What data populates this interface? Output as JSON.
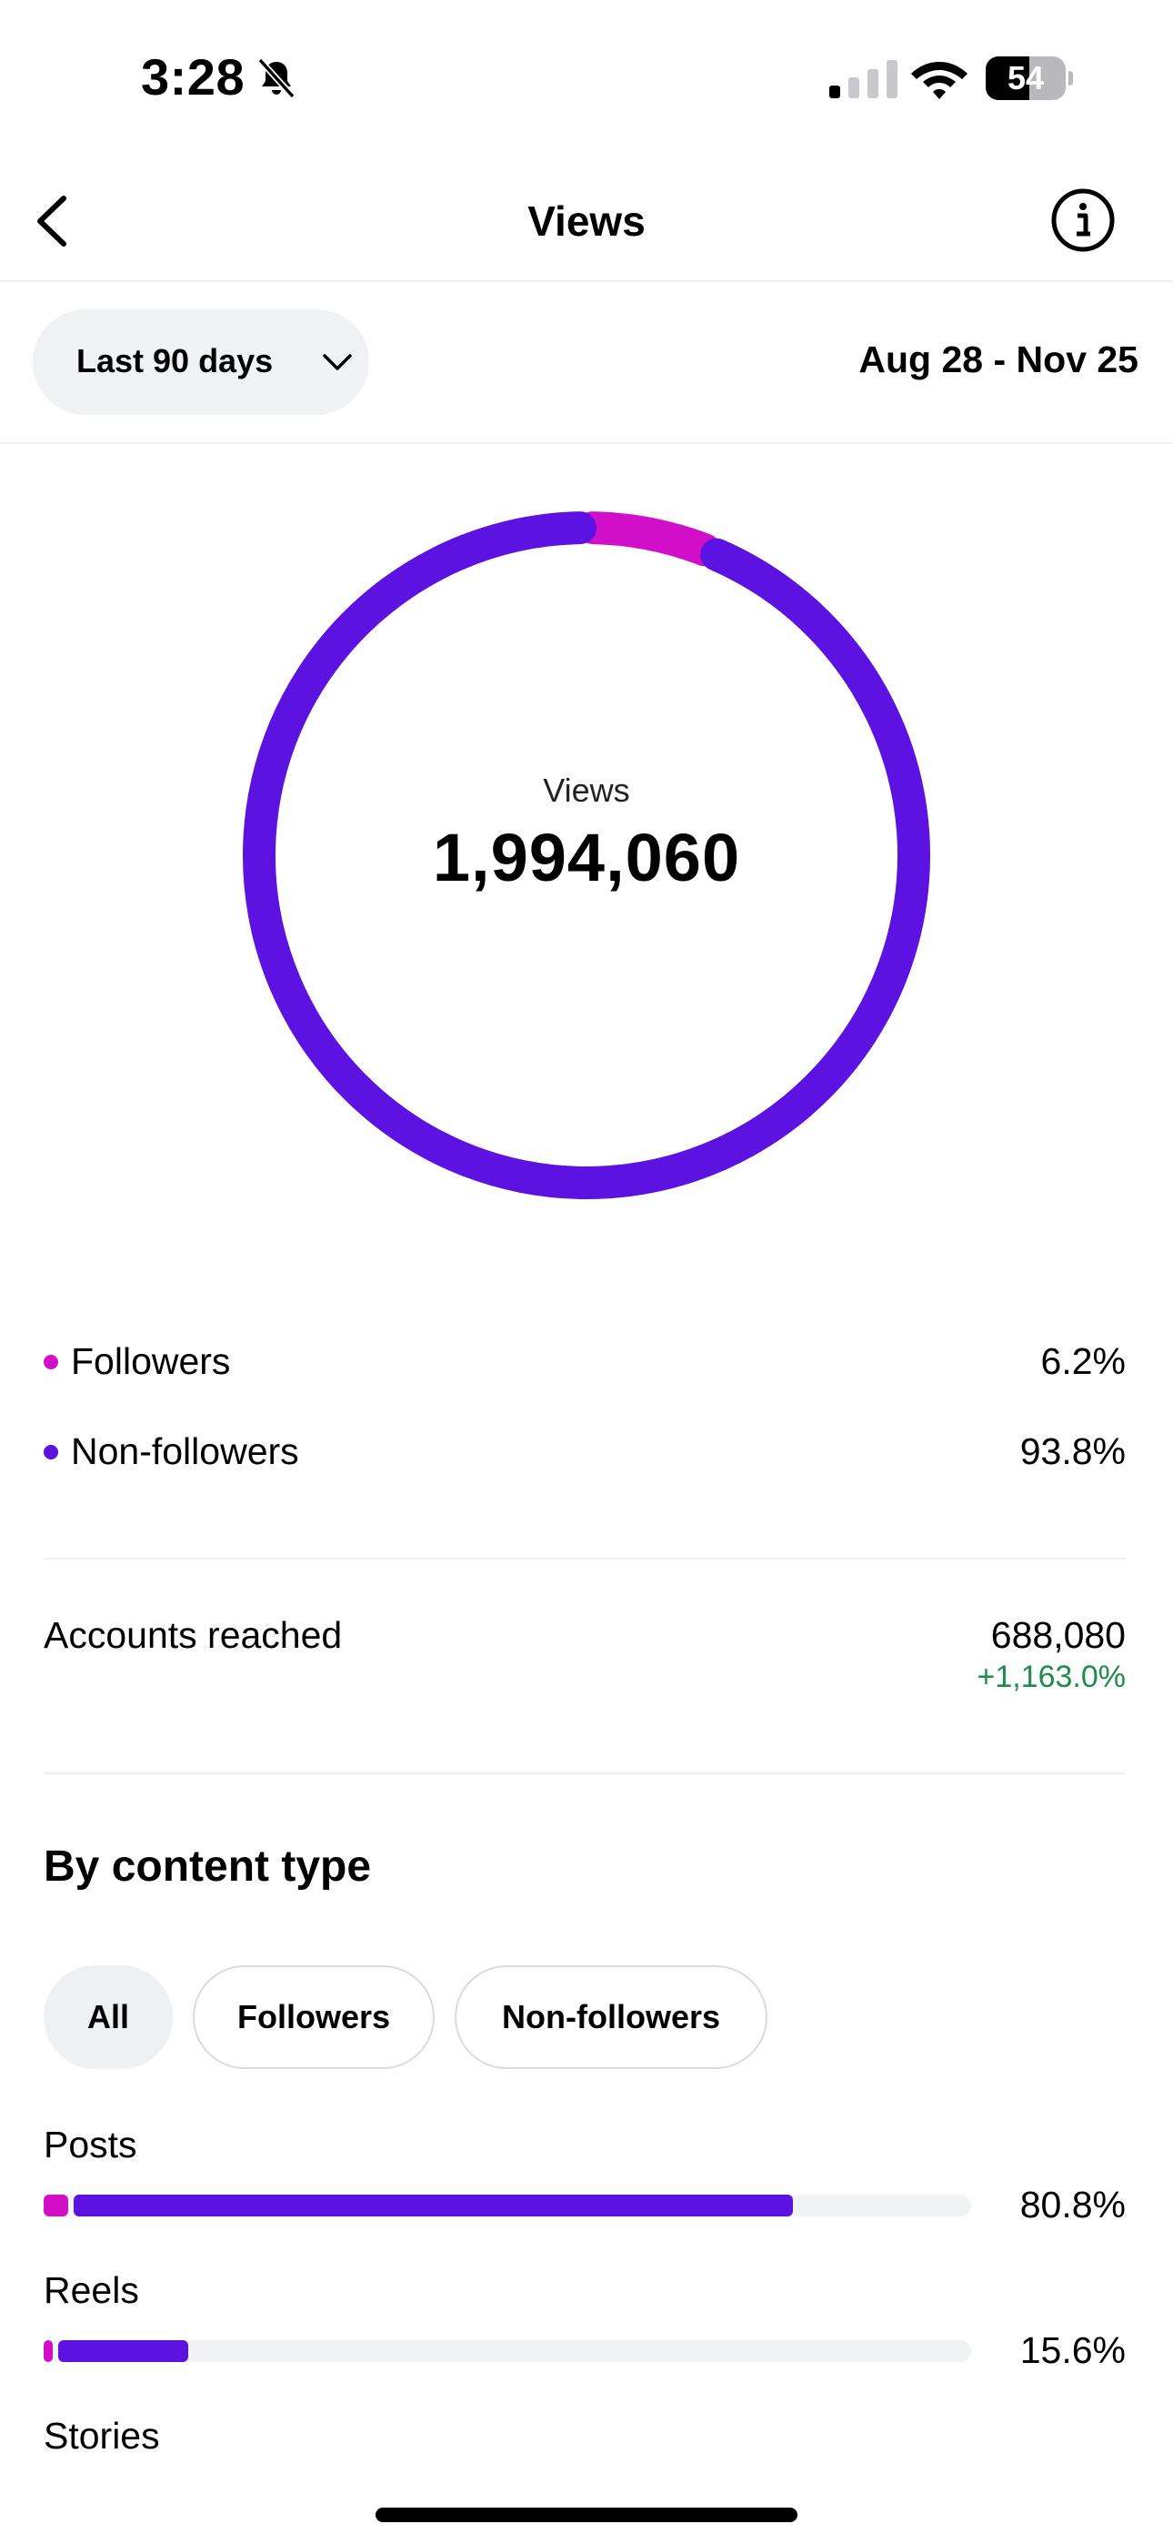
{
  "status_bar": {
    "time": "3:28",
    "battery": "54",
    "battery_percent": 54,
    "icons": [
      "bell-off-icon",
      "signal-icon",
      "wifi-icon",
      "battery-icon"
    ]
  },
  "nav": {
    "title": "Views",
    "back_icon": "chevron-left-icon",
    "info_icon": "info-icon"
  },
  "filter": {
    "period_label": "Last 90 days",
    "date_range": "Aug 28 - Nov 25"
  },
  "summary": {
    "label": "Views",
    "value": "1,994,060"
  },
  "colors": {
    "followers": "#d20fc8",
    "non_followers": "#5c12e0",
    "positive": "#1f8b4c",
    "track": "#f1f2f4"
  },
  "chart_data": {
    "type": "pie",
    "categories": [
      "Followers",
      "Non-followers"
    ],
    "values": [
      6.2,
      93.8
    ],
    "colors": [
      "#d20fc8",
      "#5c12e0"
    ]
  },
  "audience": [
    {
      "label": "Followers",
      "value": "6.2%"
    },
    {
      "label": "Non-followers",
      "value": "93.8%"
    }
  ],
  "reach": {
    "label": "Accounts reached",
    "value": "688,080",
    "change": "+1,163.0%"
  },
  "content_type": {
    "title": "By content type",
    "filters": [
      "All",
      "Followers",
      "Non-followers"
    ],
    "active_filter": "All",
    "items": [
      {
        "label": "Posts",
        "value": "80.8%",
        "percent": 80.8,
        "followers_percent": 2.6
      },
      {
        "label": "Reels",
        "value": "15.6%",
        "percent": 15.6,
        "followers_percent": 1.0
      },
      {
        "label": "Stories"
      }
    ]
  }
}
